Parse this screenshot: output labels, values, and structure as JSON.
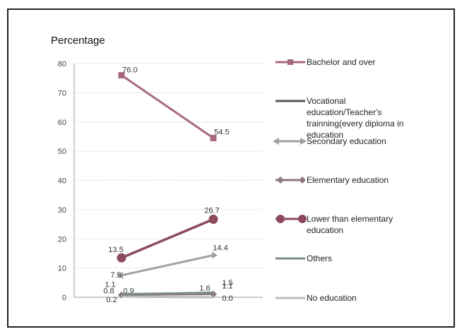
{
  "chart_data": {
    "type": "line",
    "ylabel": "Percentage",
    "ylim": [
      0,
      80
    ],
    "yticks": [
      "0",
      "10",
      "20",
      "30",
      "40",
      "50",
      "60",
      "70",
      "80"
    ],
    "grid": true,
    "legend_position": "right",
    "x": [
      "",
      ""
    ],
    "series": [
      {
        "name": "Bachelor and over",
        "values": [
          76.0,
          54.5
        ],
        "labels": [
          "76.0",
          "54.5"
        ],
        "color": "#a9697c",
        "marker": "square"
      },
      {
        "name": "Vocational education/Teacher's trainning(every diploma in education",
        "values": [
          0.9,
          1.6
        ],
        "labels": [
          "0.9",
          "1.6"
        ],
        "color": "#555555",
        "marker": "none"
      },
      {
        "name": "Secondary education",
        "values": [
          7.5,
          14.4
        ],
        "labels": [
          "7.5",
          "14.4"
        ],
        "color": "#a0a0a0",
        "marker": "arrow"
      },
      {
        "name": "Elementary education",
        "values": [
          0.8,
          1.1
        ],
        "labels": [
          "0.8",
          "1.1"
        ],
        "color": "#8c7a80",
        "marker": "diamond"
      },
      {
        "name": "Lower than elementary education",
        "values": [
          13.5,
          26.7
        ],
        "labels": [
          "13.5",
          "26.7"
        ],
        "color": "#8a4a5c",
        "marker": "circle"
      },
      {
        "name": "Others",
        "values": [
          1.1,
          1.5
        ],
        "labels": [
          "1.1",
          "1.5"
        ],
        "color": "#7a8a8c",
        "marker": "none"
      },
      {
        "name": "No  education",
        "values": [
          0.2,
          0.0
        ],
        "labels": [
          "0.2",
          "0.0"
        ],
        "color": "#bdbdbd",
        "marker": "none"
      }
    ]
  }
}
